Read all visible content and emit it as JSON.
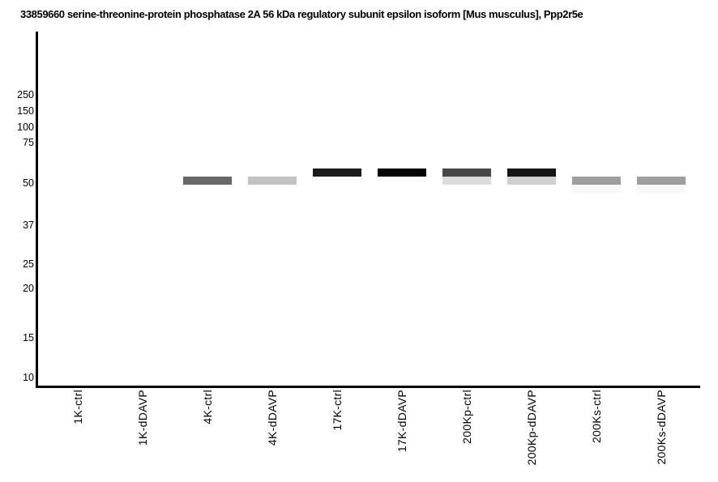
{
  "chart_data": {
    "type": "heatmap",
    "subtype": "western_blot_gel_lanes",
    "title": "33859660 serine-threonine-protein phosphatase 2A 56 kDa regulatory subunit epsilon isoform [Mus musculus], Ppp2r5e",
    "xlabel": "",
    "ylabel": "",
    "grid": false,
    "legend": false,
    "y_axis_scale": "gel-migration (log-like), values in kDa",
    "y_ticks_kda": [
      "250",
      "150",
      "100",
      "75",
      "50",
      "37",
      "25",
      "20",
      "15",
      "10"
    ],
    "categories": [
      "1K-ctrl",
      "1K-dDAVP",
      "4K-ctrl",
      "4K-dDAVP",
      "17K-ctrl",
      "17K-dDAVP",
      "200Kp-ctrl",
      "200Kp-dDAVP",
      "200Ks-ctrl",
      "200Ks-dDAVP"
    ],
    "band_intensity_note": "darker band = higher abundance; lanes 1K-ctrl and 1K-dDAVP show no band",
    "bands": [
      {
        "lane": "4K-ctrl",
        "band": "lower",
        "approx_kda": 50,
        "color": "#686868"
      },
      {
        "lane": "4K-dDAVP",
        "band": "lower",
        "approx_kda": 50,
        "color": "#c2c2c2"
      },
      {
        "lane": "17K-ctrl",
        "band": "upper",
        "approx_kda": 53,
        "color": "#1b1b1b"
      },
      {
        "lane": "17K-dDAVP",
        "band": "upper",
        "approx_kda": 53,
        "color": "#060606"
      },
      {
        "lane": "200Kp-ctrl",
        "band": "upper",
        "approx_kda": 53,
        "color": "#474747"
      },
      {
        "lane": "200Kp-ctrl",
        "band": "lower",
        "approx_kda": 50,
        "color": "#dcdcdc"
      },
      {
        "lane": "200Kp-dDAVP",
        "band": "upper",
        "approx_kda": 53,
        "color": "#161616"
      },
      {
        "lane": "200Kp-dDAVP",
        "band": "lower",
        "approx_kda": 50,
        "color": "#d0d0d0"
      },
      {
        "lane": "200Ks-ctrl",
        "band": "lower",
        "approx_kda": 50,
        "color": "#9e9e9e"
      },
      {
        "lane": "200Ks-ctrl",
        "band": "faint",
        "approx_kda": 47,
        "color": "#f8f8f8"
      },
      {
        "lane": "200Ks-dDAVP",
        "band": "lower",
        "approx_kda": 50,
        "color": "#9e9e9e"
      },
      {
        "lane": "200Ks-dDAVP",
        "band": "faint",
        "approx_kda": 47,
        "color": "#f8f8f8"
      }
    ],
    "colors": {
      "axis": "#000000",
      "background": "#ffffff",
      "text": "#000000"
    }
  }
}
